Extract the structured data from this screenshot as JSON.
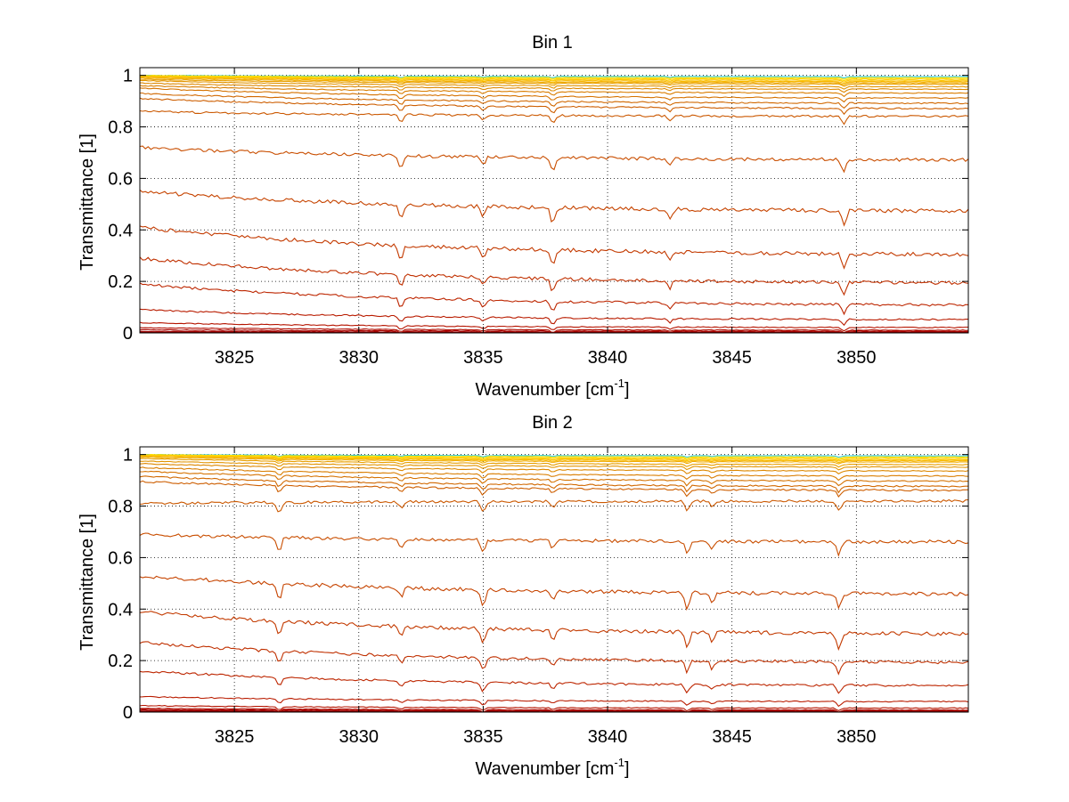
{
  "chart_data": [
    {
      "type": "line",
      "title": "Bin 1",
      "xlabel": "Wavenumber [cm",
      "xlabel_sup": "-1",
      "xlabel_end": "]",
      "ylabel": "Transmittance [1]",
      "xlim": [
        3821.2,
        3854.5
      ],
      "ylim": [
        0,
        1.03
      ],
      "xticks": [
        3825,
        3830,
        3835,
        3840,
        3845,
        3850
      ],
      "xtick_labels": [
        "3825",
        "3830",
        "3835",
        "3840",
        "3845",
        "3850"
      ],
      "yticks": [
        0,
        0.2,
        0.4,
        0.6,
        0.8,
        1
      ],
      "ytick_labels": [
        "0",
        "0.2",
        "0.4",
        "0.6",
        "0.8",
        "1"
      ],
      "grid": true,
      "series_count": 26,
      "absorption_lines": [
        3831.7,
        3835.0,
        3837.8,
        3842.5,
        3849.5
      ],
      "series": [
        {
          "start": 1.0,
          "end": 0.995,
          "color": "#33ccd0"
        },
        {
          "start": 1.0,
          "end": 0.99,
          "color": "#ffe000"
        },
        {
          "start": 0.998,
          "end": 0.985,
          "color": "#ffd200"
        },
        {
          "start": 0.996,
          "end": 0.98,
          "color": "#fcc400"
        },
        {
          "start": 0.994,
          "end": 0.975,
          "color": "#f8b800"
        },
        {
          "start": 0.99,
          "end": 0.97,
          "color": "#f0ab00"
        },
        {
          "start": 0.985,
          "end": 0.965,
          "color": "#e89f00"
        },
        {
          "start": 0.98,
          "end": 0.955,
          "color": "#e29400"
        },
        {
          "start": 0.97,
          "end": 0.945,
          "color": "#dd8800"
        },
        {
          "start": 0.96,
          "end": 0.93,
          "color": "#d97d00"
        },
        {
          "start": 0.95,
          "end": 0.91,
          "color": "#d57200"
        },
        {
          "start": 0.93,
          "end": 0.89,
          "color": "#d16800"
        },
        {
          "start": 0.91,
          "end": 0.87,
          "color": "#cd5e00"
        },
        {
          "start": 0.86,
          "end": 0.84,
          "color": "#cb5800"
        },
        {
          "start": 0.72,
          "end": 0.67,
          "color": "#c94e00"
        },
        {
          "start": 0.55,
          "end": 0.47,
          "color": "#c64400"
        },
        {
          "start": 0.41,
          "end": 0.3,
          "color": "#c33a00"
        },
        {
          "start": 0.29,
          "end": 0.19,
          "color": "#c03000"
        },
        {
          "start": 0.19,
          "end": 0.105,
          "color": "#bd2600"
        },
        {
          "start": 0.09,
          "end": 0.05,
          "color": "#b91c00"
        },
        {
          "start": 0.04,
          "end": 0.02,
          "color": "#b51400"
        },
        {
          "start": 0.02,
          "end": 0.01,
          "color": "#b00c00"
        },
        {
          "start": 0.012,
          "end": 0.006,
          "color": "#aa0500"
        },
        {
          "start": 0.006,
          "end": 0.003,
          "color": "#a00000"
        },
        {
          "start": 0.003,
          "end": 0.001,
          "color": "#960000"
        },
        {
          "start": 0.001,
          "end": 0.0,
          "color": "#8c0000"
        }
      ]
    },
    {
      "type": "line",
      "title": "Bin 2",
      "xlabel": "Wavenumber [cm",
      "xlabel_sup": "-1",
      "xlabel_end": "]",
      "ylabel": "Transmittance [1]",
      "xlim": [
        3821.2,
        3854.5
      ],
      "ylim": [
        0,
        1.03
      ],
      "xticks": [
        3825,
        3830,
        3835,
        3840,
        3845,
        3850
      ],
      "xtick_labels": [
        "3825",
        "3830",
        "3835",
        "3840",
        "3845",
        "3850"
      ],
      "yticks": [
        0,
        0.2,
        0.4,
        0.6,
        0.8,
        1
      ],
      "ytick_labels": [
        "0",
        "0.2",
        "0.4",
        "0.6",
        "0.8",
        "1"
      ],
      "grid": true,
      "series_count": 26,
      "absorption_lines": [
        3826.8,
        3831.7,
        3835.0,
        3837.8,
        3843.2,
        3844.2,
        3849.3
      ],
      "series": [
        {
          "start": 1.0,
          "end": 0.995,
          "color": "#33ccd0"
        },
        {
          "start": 1.0,
          "end": 0.99,
          "color": "#ffe000"
        },
        {
          "start": 0.998,
          "end": 0.985,
          "color": "#ffd200"
        },
        {
          "start": 0.996,
          "end": 0.98,
          "color": "#fcc400"
        },
        {
          "start": 0.994,
          "end": 0.975,
          "color": "#f8b800"
        },
        {
          "start": 0.99,
          "end": 0.97,
          "color": "#f0ab00"
        },
        {
          "start": 0.985,
          "end": 0.96,
          "color": "#e89f00"
        },
        {
          "start": 0.975,
          "end": 0.95,
          "color": "#e29400"
        },
        {
          "start": 0.965,
          "end": 0.935,
          "color": "#dd8800"
        },
        {
          "start": 0.95,
          "end": 0.915,
          "color": "#d97d00"
        },
        {
          "start": 0.935,
          "end": 0.895,
          "color": "#d57200"
        },
        {
          "start": 0.915,
          "end": 0.875,
          "color": "#d16800"
        },
        {
          "start": 0.895,
          "end": 0.86,
          "color": "#cd5e00"
        },
        {
          "start": 0.81,
          "end": 0.82,
          "color": "#cb5800"
        },
        {
          "start": 0.69,
          "end": 0.66,
          "color": "#c94e00"
        },
        {
          "start": 0.53,
          "end": 0.455,
          "color": "#c64400"
        },
        {
          "start": 0.39,
          "end": 0.3,
          "color": "#c33a00"
        },
        {
          "start": 0.27,
          "end": 0.19,
          "color": "#c03000"
        },
        {
          "start": 0.16,
          "end": 0.1,
          "color": "#bd2600"
        },
        {
          "start": 0.06,
          "end": 0.04,
          "color": "#b91c00"
        },
        {
          "start": 0.025,
          "end": 0.015,
          "color": "#b51400"
        },
        {
          "start": 0.015,
          "end": 0.008,
          "color": "#b00c00"
        },
        {
          "start": 0.01,
          "end": 0.005,
          "color": "#aa0500"
        },
        {
          "start": 0.006,
          "end": 0.003,
          "color": "#a00000"
        },
        {
          "start": 0.003,
          "end": 0.001,
          "color": "#960000"
        },
        {
          "start": 0.001,
          "end": 0.0,
          "color": "#8c0000"
        }
      ]
    }
  ]
}
